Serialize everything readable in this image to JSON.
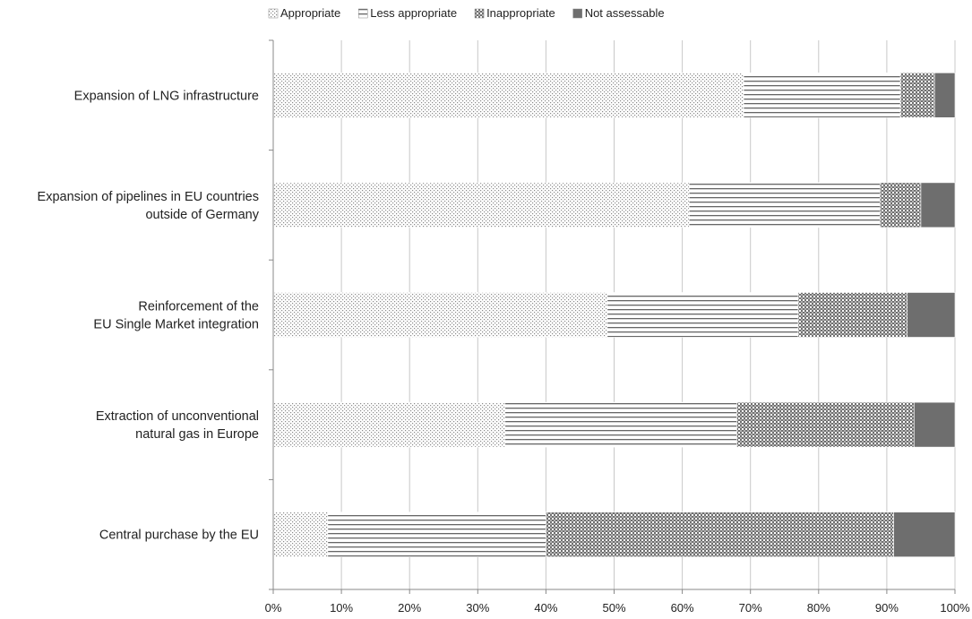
{
  "chart_data": {
    "type": "bar",
    "orientation": "horizontal",
    "stacked": true,
    "categories": [
      [
        "Expansion of LNG infrastructure"
      ],
      [
        "Expansion of pipelines in EU countries",
        "outside of Germany"
      ],
      [
        "Reinforcement of the",
        "EU Single Market integration"
      ],
      [
        "Extraction of unconventional",
        "natural gas in Europe"
      ],
      [
        "Central purchase by the EU"
      ]
    ],
    "series": [
      {
        "name": "Appropriate",
        "pattern": "dots",
        "values": [
          69,
          61,
          49,
          34,
          8
        ]
      },
      {
        "name": "Less appropriate",
        "pattern": "horizontal-lines",
        "values": [
          23,
          28,
          28,
          34,
          32
        ]
      },
      {
        "name": "Inappropriate",
        "pattern": "crosshatch",
        "values": [
          5,
          6,
          16,
          26,
          51
        ]
      },
      {
        "name": "Not assessable",
        "pattern": "solid",
        "values": [
          3,
          5,
          7,
          6,
          9
        ]
      }
    ],
    "x_ticks": [
      "0%",
      "10%",
      "20%",
      "30%",
      "40%",
      "50%",
      "60%",
      "70%",
      "80%",
      "90%",
      "100%"
    ],
    "xlim": [
      0,
      100
    ],
    "grid": true,
    "legend_position": "top",
    "colors": {
      "solid": "#6e6e6e",
      "hatch": "#7a7a7a",
      "grid": "#c8c8c8",
      "axis": "#888888"
    }
  }
}
